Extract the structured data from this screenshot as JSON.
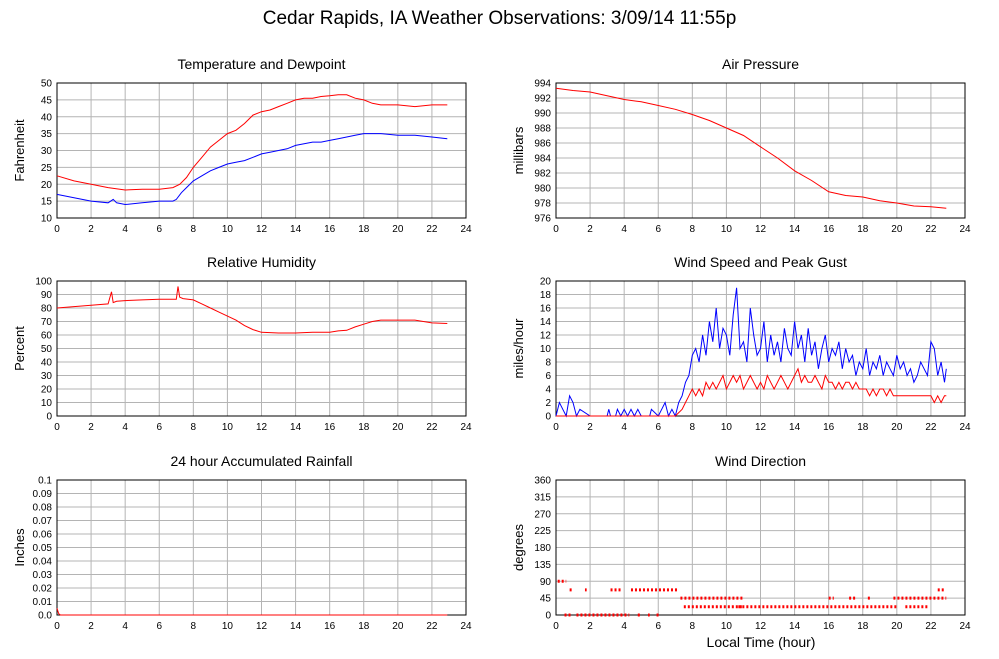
{
  "title": "Cedar Rapids, IA Weather Observations: 3/09/14 11:55p",
  "xaxis_caption": "Local Time (hour)",
  "colors": {
    "red": "#ff0000",
    "blue": "#0000ff",
    "grid": "#b4b4b4"
  },
  "chart_data": [
    {
      "type": "line",
      "title": "Temperature and Dewpoint",
      "ylabel": "Fahrenheit",
      "xlim": [
        0,
        24
      ],
      "ylim": [
        10,
        50
      ],
      "xticks": [
        "0",
        "2",
        "4",
        "6",
        "8",
        "10",
        "12",
        "14",
        "16",
        "18",
        "20",
        "22",
        "24"
      ],
      "yticks": [
        "10",
        "15",
        "20",
        "25",
        "30",
        "35",
        "40",
        "45",
        "50"
      ],
      "series": [
        {
          "color": "#ff0000",
          "x": [
            0,
            1,
            2,
            3,
            4,
            5,
            6,
            6.8,
            7.2,
            7.6,
            8,
            8.5,
            9,
            9.5,
            10,
            10.5,
            11,
            11.5,
            12,
            12.5,
            13,
            13.5,
            14,
            14.5,
            15,
            15.5,
            16,
            16.5,
            17,
            17.5,
            18,
            18.5,
            19,
            20,
            21,
            22,
            22.9
          ],
          "y": [
            22.5,
            21,
            20,
            19,
            18.3,
            18.5,
            18.5,
            19,
            20,
            22,
            25,
            28,
            31,
            33,
            35,
            36,
            38,
            40.5,
            41.5,
            42,
            43,
            44,
            45,
            45.5,
            45.5,
            46,
            46.2,
            46.5,
            46.5,
            45.5,
            45,
            44,
            43.5,
            43.5,
            43,
            43.5,
            43.5
          ]
        },
        {
          "color": "#0000ff",
          "x": [
            0,
            1,
            2,
            3,
            3.3,
            3.5,
            4,
            5,
            6,
            6.8,
            7,
            7.3,
            7.6,
            8,
            8.5,
            9,
            9.5,
            10,
            10.5,
            11,
            11.5,
            12,
            12.5,
            13,
            13.5,
            14,
            14.5,
            15,
            15.5,
            16,
            16.5,
            17,
            17.5,
            18,
            18.5,
            19,
            20,
            21,
            22,
            22.9
          ],
          "y": [
            17,
            16,
            15,
            14.5,
            15.5,
            14.5,
            14,
            14.5,
            15,
            15,
            15.5,
            17.5,
            19,
            21,
            22.5,
            24,
            25,
            26,
            26.5,
            27,
            28,
            29,
            29.5,
            30,
            30.5,
            31.5,
            32,
            32.5,
            32.5,
            33,
            33.5,
            34,
            34.5,
            35,
            35,
            35,
            34.5,
            34.5,
            34,
            33.5
          ]
        }
      ]
    },
    {
      "type": "line",
      "title": "Air Pressure",
      "ylabel": "millibars",
      "xlim": [
        0,
        24
      ],
      "ylim": [
        976,
        994
      ],
      "xticks": [
        "0",
        "2",
        "4",
        "6",
        "8",
        "10",
        "12",
        "14",
        "16",
        "18",
        "20",
        "22",
        "24"
      ],
      "yticks": [
        "976",
        "978",
        "980",
        "982",
        "984",
        "986",
        "988",
        "990",
        "992",
        "994"
      ],
      "series": [
        {
          "color": "#ff0000",
          "x": [
            0,
            1,
            2,
            3,
            4,
            5,
            6,
            7,
            8,
            9,
            10,
            11,
            12,
            13,
            14,
            15,
            16,
            17,
            18,
            19,
            20,
            21,
            22,
            22.9
          ],
          "y": [
            993.3,
            993,
            992.8,
            992.3,
            991.8,
            991.5,
            991,
            990.5,
            989.8,
            989,
            988,
            987,
            985.5,
            984,
            982.3,
            981,
            979.5,
            979,
            978.8,
            978.3,
            978,
            977.6,
            977.5,
            977.3
          ]
        }
      ]
    },
    {
      "type": "line",
      "title": "Relative Humidity",
      "ylabel": "Percent",
      "xlim": [
        0,
        24
      ],
      "ylim": [
        0,
        100
      ],
      "xticks": [
        "0",
        "2",
        "4",
        "6",
        "8",
        "10",
        "12",
        "14",
        "16",
        "18",
        "20",
        "22",
        "24"
      ],
      "yticks": [
        "0",
        "10",
        "20",
        "30",
        "40",
        "50",
        "60",
        "70",
        "80",
        "90",
        "100"
      ],
      "series": [
        {
          "color": "#ff0000",
          "x": [
            0,
            1,
            2,
            3,
            3.2,
            3.3,
            3.5,
            4,
            5,
            6,
            7,
            7.1,
            7.2,
            7.4,
            8,
            8.5,
            9,
            9.5,
            10,
            10.5,
            11,
            11.5,
            12,
            13,
            14,
            15,
            16,
            16.5,
            17,
            17.5,
            18,
            18.5,
            19,
            20,
            21,
            22,
            22.9
          ],
          "y": [
            80,
            81,
            82,
            83,
            92,
            84,
            85,
            85.5,
            86,
            86.5,
            86.5,
            96,
            88,
            87,
            86,
            83,
            80,
            77,
            74,
            71,
            67,
            64,
            62,
            61.5,
            61.5,
            62,
            62,
            63,
            63.5,
            66,
            68,
            70,
            71,
            71,
            71,
            69,
            68.5
          ]
        }
      ]
    },
    {
      "type": "line",
      "title": "Wind Speed and Peak Gust",
      "ylabel": "miles/hour",
      "xlim": [
        0,
        24
      ],
      "ylim": [
        0,
        20
      ],
      "xticks": [
        "0",
        "2",
        "4",
        "6",
        "8",
        "10",
        "12",
        "14",
        "16",
        "18",
        "20",
        "22",
        "24"
      ],
      "yticks": [
        "0",
        "2",
        "4",
        "6",
        "8",
        "10",
        "12",
        "14",
        "16",
        "18",
        "20"
      ],
      "series": [
        {
          "color": "#0000ff",
          "x": [
            0,
            0.2,
            0.4,
            0.6,
            0.8,
            1,
            1.2,
            1.4,
            2,
            3,
            3.1,
            3.2,
            3.5,
            3.6,
            3.8,
            4,
            4.2,
            4.4,
            4.6,
            4.8,
            5,
            5.5,
            5.6,
            6,
            6.2,
            6.4,
            6.6,
            6.8,
            7,
            7.2,
            7.4,
            7.6,
            7.8,
            8,
            8.2,
            8.4,
            8.6,
            8.8,
            9,
            9.2,
            9.4,
            9.6,
            9.8,
            10,
            10.2,
            10.4,
            10.6,
            10.8,
            11,
            11.2,
            11.4,
            11.6,
            11.8,
            12,
            12.2,
            12.4,
            12.6,
            12.8,
            13,
            13.2,
            13.4,
            13.6,
            13.8,
            14,
            14.2,
            14.4,
            14.6,
            14.8,
            15,
            15.2,
            15.4,
            15.6,
            15.8,
            16,
            16.2,
            16.4,
            16.6,
            16.8,
            17,
            17.2,
            17.4,
            17.6,
            17.8,
            18,
            18.2,
            18.4,
            18.6,
            18.8,
            19,
            19.2,
            19.4,
            19.6,
            19.8,
            20,
            20.2,
            20.4,
            20.6,
            20.8,
            21,
            21.2,
            21.4,
            21.6,
            21.8,
            22,
            22.2,
            22.4,
            22.6,
            22.8,
            22.9
          ],
          "y": [
            0,
            2,
            1,
            0,
            3,
            2,
            0,
            1,
            0,
            0,
            1,
            0,
            0,
            1,
            0,
            1,
            0,
            1,
            0,
            1,
            0,
            0,
            1,
            0,
            1,
            2,
            0,
            1,
            0,
            2,
            3,
            5,
            6,
            9,
            10,
            8,
            12,
            9,
            14,
            11,
            16,
            10,
            13,
            12,
            9,
            15,
            19,
            10,
            11,
            8,
            16,
            12,
            9,
            10,
            14,
            8,
            12,
            9,
            11,
            8,
            13,
            10,
            9,
            14,
            10,
            12,
            8,
            13,
            9,
            11,
            7,
            10,
            12,
            8,
            10,
            9,
            11,
            7,
            10,
            8,
            9,
            6,
            8,
            7,
            10,
            6,
            8,
            7,
            9,
            6,
            8,
            7,
            6,
            9,
            7,
            8,
            6,
            7,
            5,
            6,
            8,
            7,
            6,
            11,
            10,
            6,
            8,
            5,
            7
          ]
        },
        {
          "color": "#ff0000",
          "x": [
            0,
            7,
            7.4,
            7.6,
            7.8,
            8,
            8.2,
            8.4,
            8.6,
            8.8,
            9,
            9.2,
            9.4,
            9.6,
            9.8,
            10,
            10.2,
            10.4,
            10.6,
            10.8,
            11,
            11.2,
            11.4,
            11.6,
            11.8,
            12,
            12.2,
            12.4,
            12.6,
            12.8,
            13,
            13.2,
            13.4,
            13.6,
            13.8,
            14,
            14.2,
            14.4,
            14.6,
            14.8,
            15,
            15.2,
            15.4,
            15.6,
            15.8,
            16,
            16.2,
            16.4,
            16.6,
            16.8,
            17,
            17.2,
            17.4,
            17.6,
            17.8,
            18,
            18.2,
            18.4,
            18.6,
            18.8,
            19,
            19.2,
            19.4,
            19.6,
            19.8,
            20,
            20.2,
            20.4,
            20.6,
            20.8,
            21,
            21.2,
            21.4,
            21.6,
            21.8,
            22,
            22.2,
            22.4,
            22.6,
            22.8,
            22.9
          ],
          "y": [
            0,
            0,
            1,
            2,
            3,
            4,
            3,
            4,
            3,
            5,
            4,
            5,
            4,
            5,
            6,
            4,
            5,
            6,
            5,
            6,
            4,
            5,
            6,
            5,
            4,
            5,
            4,
            6,
            5,
            4,
            5,
            6,
            5,
            4,
            5,
            6,
            7,
            5,
            6,
            5,
            5,
            6,
            5,
            4,
            6,
            5,
            5,
            4,
            5,
            4,
            5,
            5,
            4,
            5,
            4,
            4,
            4,
            3,
            4,
            3,
            4,
            4,
            3,
            4,
            3,
            3,
            3,
            3,
            3,
            3,
            3,
            3,
            3,
            3,
            3,
            3,
            2,
            3,
            2,
            3,
            3
          ]
        }
      ]
    },
    {
      "type": "line",
      "title": "24 hour Accumulated Rainfall",
      "ylabel": "Inches",
      "xlim": [
        0,
        24
      ],
      "ylim": [
        0,
        0.1
      ],
      "xticks": [
        "0",
        "2",
        "4",
        "6",
        "8",
        "10",
        "12",
        "14",
        "16",
        "18",
        "20",
        "22",
        "24"
      ],
      "yticks": [
        "0.0",
        "0.01",
        "0.02",
        "0.03",
        "0.04",
        "0.05",
        "0.06",
        "0.07",
        "0.08",
        "0.09",
        "0.1"
      ],
      "series": [
        {
          "color": "#ff0000",
          "x": [
            0,
            0.1,
            0.2,
            22.9
          ],
          "y": [
            0.005,
            0.001,
            0,
            0
          ]
        }
      ]
    },
    {
      "type": "scatter",
      "title": "Wind Direction",
      "ylabel": "degrees",
      "xlim": [
        0,
        24
      ],
      "ylim": [
        0,
        360
      ],
      "xticks": [
        "0",
        "2",
        "4",
        "6",
        "8",
        "10",
        "12",
        "14",
        "16",
        "18",
        "20",
        "22",
        "24"
      ],
      "yticks": [
        "0",
        "45",
        "90",
        "135",
        "180",
        "225",
        "270",
        "315",
        "360"
      ],
      "series": [
        {
          "color": "#ff0000",
          "segments": [
            {
              "x0": 0.1,
              "x1": 0.6,
              "y": 90
            },
            {
              "x0": 0.8,
              "x1": 1.0,
              "y": 67
            },
            {
              "x0": 1.7,
              "x1": 1.8,
              "y": 67
            },
            {
              "x0": 0.5,
              "x1": 0.9,
              "y": 0
            },
            {
              "x0": 1.2,
              "x1": 4.3,
              "y": 0
            },
            {
              "x0": 3.2,
              "x1": 3.8,
              "y": 67
            },
            {
              "x0": 4.4,
              "x1": 7.2,
              "y": 67
            },
            {
              "x0": 4.8,
              "x1": 5.0,
              "y": 0
            },
            {
              "x0": 5.4,
              "x1": 5.5,
              "y": 0
            },
            {
              "x0": 5.9,
              "x1": 6.1,
              "y": 0
            },
            {
              "x0": 7.3,
              "x1": 11.0,
              "y": 45
            },
            {
              "x0": 7.5,
              "x1": 11.0,
              "y": 22
            },
            {
              "x0": 10.7,
              "x1": 20.0,
              "y": 22
            },
            {
              "x0": 16.0,
              "x1": 16.3,
              "y": 45
            },
            {
              "x0": 17.2,
              "x1": 17.6,
              "y": 45
            },
            {
              "x0": 18.3,
              "x1": 18.5,
              "y": 45
            },
            {
              "x0": 19.8,
              "x1": 22.9,
              "y": 45
            },
            {
              "x0": 20.5,
              "x1": 21.8,
              "y": 22
            },
            {
              "x0": 22.4,
              "x1": 22.8,
              "y": 67
            }
          ]
        }
      ]
    }
  ]
}
